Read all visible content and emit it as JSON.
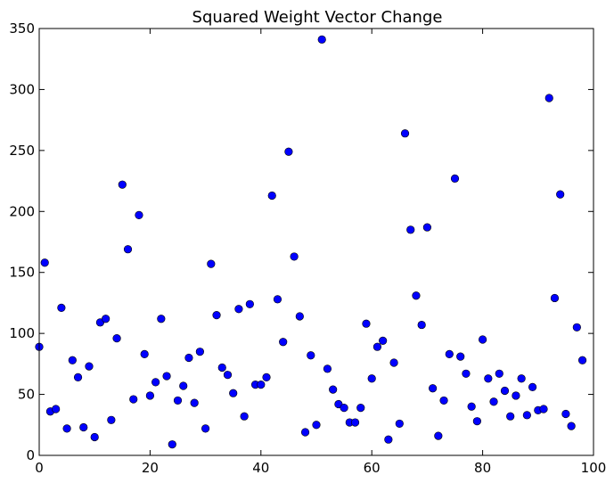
{
  "chart_data": {
    "type": "scatter",
    "title": "Squared Weight Vector Change",
    "xlabel": "",
    "ylabel": "",
    "xlim": [
      0,
      100
    ],
    "ylim": [
      0,
      350
    ],
    "x_ticks": [
      0,
      20,
      40,
      60,
      80,
      100
    ],
    "y_ticks": [
      0,
      50,
      100,
      150,
      200,
      250,
      300,
      350
    ],
    "grid": false,
    "legend": "none",
    "marker_color": "#0000ff",
    "series": [
      {
        "x": [
          0,
          1,
          2,
          3,
          4,
          5,
          6,
          7,
          8,
          9,
          10,
          11,
          12,
          13,
          14,
          15,
          16,
          17,
          18,
          19,
          20,
          21,
          22,
          23,
          24,
          25,
          26,
          27,
          28,
          29,
          30,
          31,
          32,
          33,
          34,
          35,
          36,
          37,
          38,
          39,
          40,
          41,
          42,
          43,
          44,
          45,
          46,
          47,
          48,
          49,
          50,
          51,
          52,
          53,
          54,
          55,
          56,
          57,
          58,
          59,
          60,
          61,
          62,
          63,
          64,
          65,
          66,
          67,
          68,
          69,
          70,
          71,
          72,
          73,
          74,
          75,
          76,
          77,
          78,
          79,
          80,
          81,
          82,
          83,
          84,
          85,
          86,
          87,
          88,
          89,
          90,
          91,
          92,
          93,
          94,
          95,
          96,
          97,
          98
        ],
        "values": [
          89,
          158,
          36,
          38,
          121,
          22,
          78,
          64,
          23,
          73,
          15,
          109,
          112,
          29,
          96,
          222,
          169,
          46,
          197,
          83,
          49,
          60,
          112,
          65,
          9,
          45,
          57,
          80,
          43,
          85,
          22,
          157,
          115,
          72,
          66,
          51,
          120,
          32,
          124,
          58,
          58,
          64,
          213,
          128,
          93,
          249,
          163,
          114,
          19,
          82,
          25,
          341,
          71,
          54,
          42,
          39,
          27,
          27,
          39,
          108,
          63,
          89,
          94,
          13,
          76,
          26,
          264,
          185,
          131,
          107,
          187,
          55,
          16,
          45,
          83,
          227,
          81,
          67,
          40,
          28,
          95,
          63,
          44,
          67,
          53,
          32,
          49,
          63,
          33,
          56,
          37,
          38,
          293,
          129,
          214,
          34,
          24,
          105,
          78
        ]
      }
    ]
  }
}
